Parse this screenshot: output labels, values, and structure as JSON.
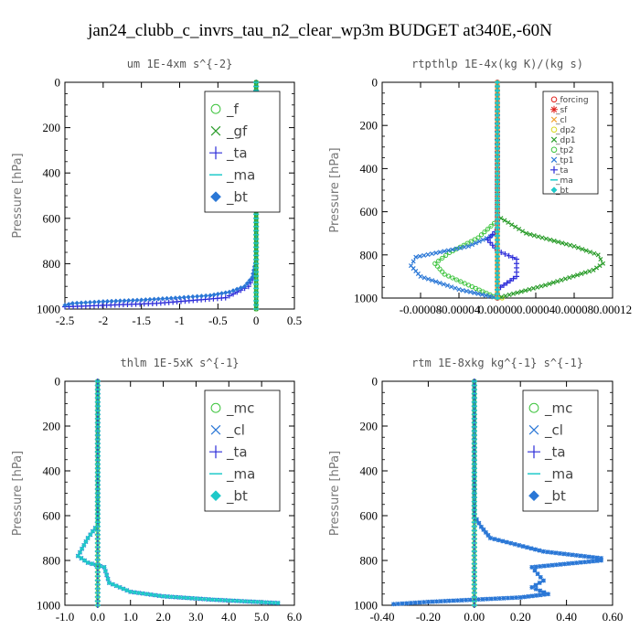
{
  "figure_title": "jan24_clubb_c_invrs_tau_n2_clear_wp3m  BUDGET at340E,-60N",
  "colors": {
    "blue": "#2a77d6",
    "navy": "#2b2bd9",
    "green": "#3ec43e",
    "red": "#e0201b",
    "cyan": "#1fc9c9",
    "darkgreen": "#2a9c2a",
    "orange": "#f0a030",
    "yellow": "#d8d820"
  },
  "chart_data": [
    {
      "type": "line",
      "title": "um   1E-4xm s^{-2}",
      "ylabel": "Pressure [hPa]",
      "xlim": [
        -2.5,
        0.5
      ],
      "ylim": [
        1000,
        0
      ],
      "x_ticks": [
        -2.5,
        -2,
        -1.5,
        -1,
        -0.5,
        0,
        0.5
      ],
      "x_tick_labels": [
        "-2.5",
        "-2",
        "-1.5",
        "-1",
        "-0.5",
        "0",
        "0.5"
      ],
      "y_ticks": [
        0,
        200,
        400,
        600,
        800,
        1000
      ],
      "y_tick_labels": [
        "0",
        "200",
        "400",
        "600",
        "800",
        "1000"
      ],
      "legend": {
        "position": "top-right",
        "size": "large",
        "entries": [
          "_f",
          "_gf",
          "_ta",
          "_ma",
          "_bt"
        ]
      },
      "series": [
        {
          "name": "_f",
          "color": "green",
          "marker": "circle",
          "points": [
            [
              0.0,
              0
            ],
            [
              0.0,
              1000
            ]
          ]
        },
        {
          "name": "_gf",
          "color": "darkgreen",
          "marker": "x",
          "points": [
            [
              0.0,
              0
            ],
            [
              0.0,
              1000
            ]
          ]
        },
        {
          "name": "_ta",
          "color": "navy",
          "marker": "plus",
          "points": [
            [
              0.0,
              0
            ],
            [
              0.0,
              800
            ],
            [
              -0.02,
              850
            ],
            [
              -0.1,
              900
            ],
            [
              -0.4,
              950
            ],
            [
              -1.3,
              975
            ],
            [
              -2.5,
              990
            ]
          ]
        },
        {
          "name": "_ma",
          "color": "cyan",
          "marker": "dash",
          "points": [
            [
              0.0,
              0
            ],
            [
              0.0,
              1000
            ]
          ]
        },
        {
          "name": "_bt",
          "color": "blue",
          "marker": "diamond",
          "points": [
            [
              0.0,
              0
            ],
            [
              0.0,
              780
            ],
            [
              -0.05,
              860
            ],
            [
              -0.15,
              900
            ],
            [
              -0.35,
              925
            ],
            [
              -0.6,
              940
            ],
            [
              -1.0,
              950
            ],
            [
              -1.5,
              960
            ],
            [
              -2.0,
              967
            ],
            [
              -2.4,
              975
            ],
            [
              -2.5,
              983
            ]
          ]
        }
      ]
    },
    {
      "type": "line",
      "title": "rtpthlp  1E-4x(kg K)/(kg s)",
      "ylabel": "Pressure [hPa]",
      "xlim": [
        -0.00012,
        0.00012
      ],
      "ylim": [
        1000,
        0
      ],
      "x_ticks": [
        -8e-05,
        -4e-05,
        0,
        4e-05,
        8e-05,
        0.00012
      ],
      "x_tick_labels": [
        "-0.00008",
        "-0.00004",
        "0.00000",
        "0.00004",
        "0.00008",
        "0.00012"
      ],
      "y_ticks": [
        0,
        200,
        400,
        600,
        800,
        1000
      ],
      "y_tick_labels": [
        "0",
        "200",
        "400",
        "600",
        "800",
        "1000"
      ],
      "legend": {
        "position": "top-right",
        "size": "small",
        "entries": [
          "_forcing",
          "_sf",
          "_cl",
          "_dp2",
          "_dp1",
          "_tp2",
          "_tp1",
          "_ta",
          "_ma",
          "_bt"
        ]
      },
      "series": [
        {
          "name": "_forcing",
          "color": "red",
          "marker": "circle",
          "points": [
            [
              0.0,
              0
            ],
            [
              0.0,
              1000
            ]
          ]
        },
        {
          "name": "_sf",
          "color": "red",
          "marker": "star",
          "points": [
            [
              0.0,
              0
            ],
            [
              0.0,
              1000
            ]
          ]
        },
        {
          "name": "_cl",
          "color": "orange",
          "marker": "x",
          "points": [
            [
              0.0,
              0
            ],
            [
              0.0,
              1000
            ]
          ]
        },
        {
          "name": "_dp2",
          "color": "yellow",
          "marker": "circle",
          "points": [
            [
              0.0,
              0
            ],
            [
              0.0,
              990
            ],
            [
              5e-06,
              1000
            ]
          ]
        },
        {
          "name": "_dp1",
          "color": "darkgreen",
          "marker": "x",
          "points": [
            [
              0.0,
              0
            ],
            [
              0.0,
              620
            ],
            [
              3e-05,
              700
            ],
            [
              8e-05,
              760
            ],
            [
              0.000105,
              800
            ],
            [
              0.00011,
              840
            ],
            [
              0.0001,
              870
            ],
            [
              5e-05,
              940
            ],
            [
              0.0,
              1000
            ]
          ]
        },
        {
          "name": "_tp2",
          "color": "green",
          "marker": "circle",
          "points": [
            [
              0.0,
              0
            ],
            [
              0.0,
              640
            ],
            [
              -2e-05,
              720
            ],
            [
              -5e-05,
              790
            ],
            [
              -6.5e-05,
              840
            ],
            [
              -5.5e-05,
              890
            ],
            [
              -3e-05,
              940
            ],
            [
              0.0,
              1000
            ]
          ]
        },
        {
          "name": "_tp1",
          "color": "blue",
          "marker": "x",
          "points": [
            [
              0.0,
              0
            ],
            [
              0.0,
              700
            ],
            [
              -3e-05,
              760
            ],
            [
              -8.5e-05,
              810
            ],
            [
              -9e-05,
              850
            ],
            [
              -8e-05,
              900
            ],
            [
              -4e-05,
              960
            ],
            [
              0.0,
              1000
            ]
          ]
        },
        {
          "name": "_ta",
          "color": "navy",
          "marker": "plus",
          "points": [
            [
              0.0,
              0
            ],
            [
              0.0,
              680
            ],
            [
              -1e-05,
              730
            ],
            [
              0.0,
              780
            ],
            [
              2e-05,
              820
            ],
            [
              2e-05,
              860
            ],
            [
              2e-05,
              900
            ],
            [
              0.0,
              960
            ],
            [
              0.0,
              1000
            ]
          ]
        },
        {
          "name": "_ma",
          "color": "cyan",
          "marker": "dash",
          "points": [
            [
              0.0,
              0
            ],
            [
              0.0,
              1000
            ]
          ]
        },
        {
          "name": "_bt",
          "color": "cyan",
          "marker": "diamond",
          "points": [
            [
              0.0,
              0
            ],
            [
              0.0,
              1000
            ]
          ]
        }
      ]
    },
    {
      "type": "line",
      "title": "thlm  1E-5xK s^{-1}",
      "ylabel": "Pressure [hPa]",
      "xlim": [
        -1.0,
        6.0
      ],
      "ylim": [
        1000,
        0
      ],
      "x_ticks": [
        -1,
        0,
        1,
        2,
        3,
        4,
        5,
        6
      ],
      "x_tick_labels": [
        "-1.0",
        "0.0",
        "1.0",
        "2.0",
        "3.0",
        "4.0",
        "5.0",
        "6.0"
      ],
      "y_ticks": [
        0,
        200,
        400,
        600,
        800,
        1000
      ],
      "y_tick_labels": [
        "0",
        "200",
        "400",
        "600",
        "800",
        "1000"
      ],
      "legend": {
        "position": "top-right",
        "size": "large",
        "entries": [
          "_mc",
          "_cl",
          "_ta",
          "_ma",
          "_bt"
        ]
      },
      "series": [
        {
          "name": "_mc",
          "color": "green",
          "marker": "circle",
          "points": [
            [
              0.0,
              0
            ],
            [
              0.0,
              1000
            ]
          ]
        },
        {
          "name": "_cl",
          "color": "blue",
          "marker": "x",
          "points": [
            [
              0.0,
              0
            ],
            [
              0.0,
              640
            ],
            [
              -0.3,
              700
            ],
            [
              -0.6,
              780
            ],
            [
              -0.3,
              810
            ],
            [
              0.2,
              830
            ],
            [
              0.35,
              900
            ],
            [
              1.0,
              940
            ],
            [
              2.0,
              960
            ],
            [
              3.5,
              975
            ],
            [
              5.5,
              990
            ]
          ]
        },
        {
          "name": "_ta",
          "color": "navy",
          "marker": "plus",
          "points": [
            [
              0.0,
              0
            ],
            [
              0.0,
              1000
            ]
          ]
        },
        {
          "name": "_ma",
          "color": "cyan",
          "marker": "dash",
          "points": [
            [
              0.0,
              0
            ],
            [
              0.0,
              1000
            ]
          ]
        },
        {
          "name": "_bt",
          "color": "cyan",
          "marker": "diamond",
          "points": [
            [
              0.0,
              0
            ],
            [
              0.0,
              640
            ],
            [
              -0.3,
              700
            ],
            [
              -0.6,
              780
            ],
            [
              -0.3,
              810
            ],
            [
              0.2,
              830
            ],
            [
              0.35,
              900
            ],
            [
              1.0,
              940
            ],
            [
              2.0,
              960
            ],
            [
              3.5,
              975
            ],
            [
              5.5,
              990
            ]
          ]
        }
      ]
    },
    {
      "type": "line",
      "title": "rtm  1E-8xkg kg^{-1} s^{-1}",
      "ylabel": "Pressure [hPa]",
      "xlim": [
        -0.4,
        0.6
      ],
      "ylim": [
        1000,
        0
      ],
      "x_ticks": [
        -0.4,
        -0.2,
        0,
        0.2,
        0.4,
        0.6
      ],
      "x_tick_labels": [
        "-0.40",
        "-0.20",
        "0.00",
        "0.20",
        "0.40",
        "0.60"
      ],
      "y_ticks": [
        0,
        200,
        400,
        600,
        800,
        1000
      ],
      "y_tick_labels": [
        "0",
        "200",
        "400",
        "600",
        "800",
        "1000"
      ],
      "legend": {
        "position": "top-right",
        "size": "large",
        "entries": [
          "_mc",
          "_cl",
          "_ta",
          "_ma",
          "_bt"
        ]
      },
      "series": [
        {
          "name": "_mc",
          "color": "green",
          "marker": "circle",
          "points": [
            [
              0.0,
              0
            ],
            [
              0.0,
              1000
            ]
          ]
        },
        {
          "name": "_cl",
          "color": "blue",
          "marker": "x",
          "points": [
            [
              0.0,
              0
            ],
            [
              0.0,
              600
            ],
            [
              0.03,
              650
            ],
            [
              0.07,
              700
            ],
            [
              0.3,
              760
            ],
            [
              0.55,
              790
            ],
            [
              0.55,
              800
            ],
            [
              0.25,
              830
            ],
            [
              0.3,
              890
            ],
            [
              0.25,
              920
            ],
            [
              0.32,
              950
            ],
            [
              0.2,
              965
            ],
            [
              0.0,
              975
            ],
            [
              -0.2,
              985
            ],
            [
              -0.35,
              995
            ]
          ]
        },
        {
          "name": "_ta",
          "color": "navy",
          "marker": "plus",
          "points": [
            [
              0.0,
              0
            ],
            [
              0.0,
              1000
            ]
          ]
        },
        {
          "name": "_ma",
          "color": "cyan",
          "marker": "dash",
          "points": [
            [
              0.0,
              0
            ],
            [
              0.0,
              1000
            ]
          ]
        },
        {
          "name": "_bt",
          "color": "blue",
          "marker": "diamond",
          "points": [
            [
              0.0,
              0
            ],
            [
              0.0,
              600
            ],
            [
              0.03,
              650
            ],
            [
              0.07,
              700
            ],
            [
              0.3,
              760
            ],
            [
              0.55,
              790
            ],
            [
              0.55,
              800
            ],
            [
              0.25,
              830
            ],
            [
              0.3,
              890
            ],
            [
              0.25,
              920
            ],
            [
              0.32,
              950
            ],
            [
              0.2,
              965
            ],
            [
              0.0,
              975
            ],
            [
              -0.2,
              985
            ],
            [
              -0.35,
              995
            ]
          ]
        }
      ]
    }
  ]
}
